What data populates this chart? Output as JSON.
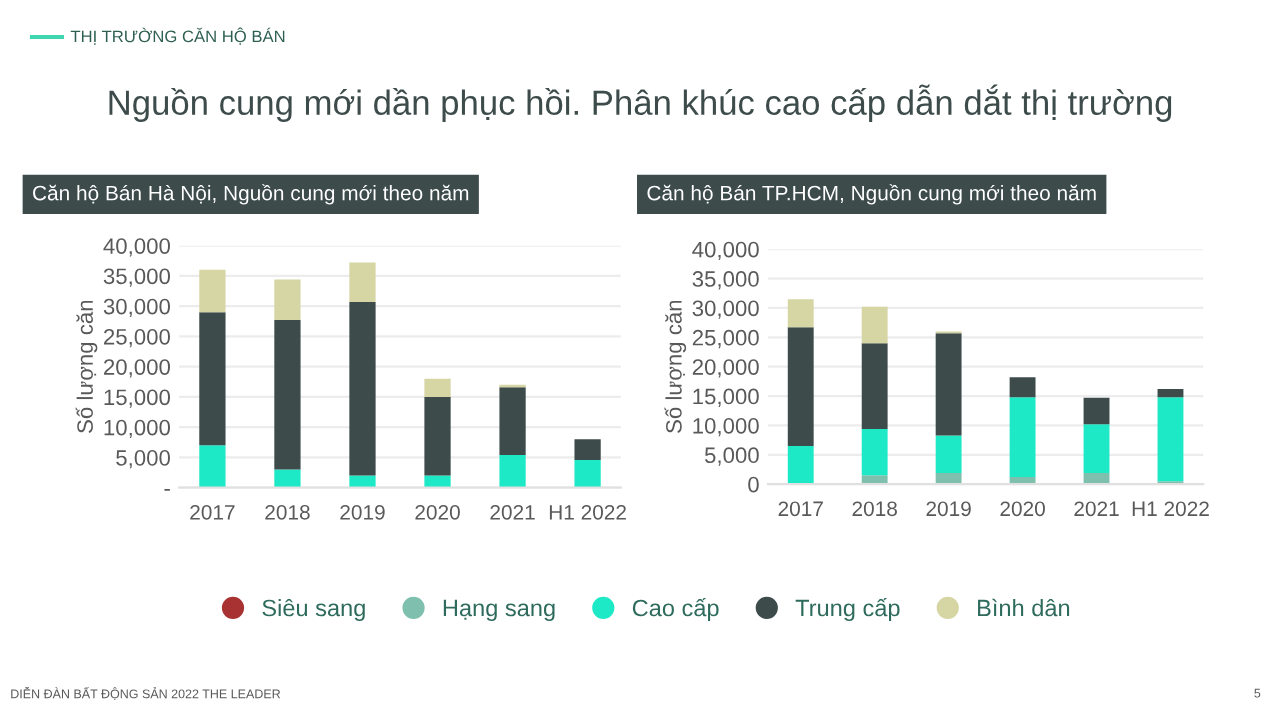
{
  "chart_data": [
    {
      "type": "bar",
      "stacked": true,
      "title": "Căn hộ Bán Hà Nội, Nguồn cung mới theo năm",
      "ylabel": "Số lượng căn",
      "annotations": [
        "THỊ TRƯỜNG CĂN HỘ BÁN",
        "Nguồn cung mới dần phục hồi. Phân khúc cao cấp dẫn dắt thị trường",
        "DIỄN ĐÀN BẤT ĐỘNG SẢN 2022 THE LEADER",
        "5"
      ],
      "categories": [
        "2017",
        "2018",
        "2019",
        "2020",
        "2021",
        "H1 2022"
      ],
      "series": [
        {
          "name": "Siêu sang",
          "color": "#a83232",
          "values": [
            0,
            0,
            0,
            0,
            0,
            0
          ]
        },
        {
          "name": "Hạng sang",
          "color": "#7fbfae",
          "values": [
            0,
            0,
            0,
            0,
            0,
            0
          ]
        },
        {
          "name": "Cao cấp",
          "color": "#1de9c6",
          "values": [
            7000,
            3000,
            2000,
            2000,
            5400,
            4600
          ]
        },
        {
          "name": "Trung cấp",
          "color": "#3d4b4b",
          "values": [
            22000,
            24700,
            28700,
            13000,
            11200,
            3400
          ]
        },
        {
          "name": "Bình dân",
          "color": "#d6d5a4",
          "values": [
            7000,
            6700,
            6500,
            3000,
            400,
            0
          ]
        }
      ],
      "ylim": [
        0,
        40000
      ],
      "yticks": [
        {
          "value": 0,
          "label": "-"
        },
        {
          "value": 5000,
          "label": "5,000"
        },
        {
          "value": 10000,
          "label": "10,000"
        },
        {
          "value": 15000,
          "label": "15,000"
        },
        {
          "value": 20000,
          "label": "20,000"
        },
        {
          "value": 25000,
          "label": "25,000"
        },
        {
          "value": 30000,
          "label": "30,000"
        },
        {
          "value": 35000,
          "label": "35,000"
        },
        {
          "value": 40000,
          "label": "40,000"
        }
      ],
      "grid": "y",
      "legend": "bottom"
    },
    {
      "type": "bar",
      "stacked": true,
      "title": "Căn hộ Bán TP.HCM, Nguồn cung mới theo năm",
      "ylabel": "Số lượng căn",
      "categories": [
        "2017",
        "2018",
        "2019",
        "2020",
        "2021",
        "H1 2022"
      ],
      "series": [
        {
          "color": "#a83232",
          "values": [
            0,
            0,
            0,
            0,
            0,
            0
          ]
        },
        {
          "color": "#7fbfae",
          "values": [
            0,
            1500,
            1900,
            1200,
            1900,
            500
          ]
        },
        {
          "color": "#1de9c6",
          "values": [
            6500,
            7900,
            6400,
            13600,
            8300,
            14300
          ]
        },
        {
          "color": "#3d4b4b",
          "values": [
            20200,
            14600,
            17400,
            3400,
            4500,
            1400
          ]
        },
        {
          "color": "#d6d5a4",
          "values": [
            4800,
            6200,
            300,
            0,
            0,
            0
          ]
        }
      ],
      "ylim": [
        0,
        40000
      ],
      "yticks": [
        0,
        {
          "value": 5000,
          "label": "5,000"
        },
        {
          "value": 10000,
          "label": "10,000"
        },
        {
          "value": 15000,
          "label": "15,000"
        },
        {
          "value": 20000,
          "label": "20,000"
        },
        {
          "value": 25000,
          "label": "25,000"
        },
        {
          "value": 30000,
          "label": "30,000"
        },
        {
          "value": 35000,
          "label": "35,000"
        },
        {
          "value": 40000,
          "label": "40,000"
        }
      ],
      "grid": "y"
    }
  ]
}
